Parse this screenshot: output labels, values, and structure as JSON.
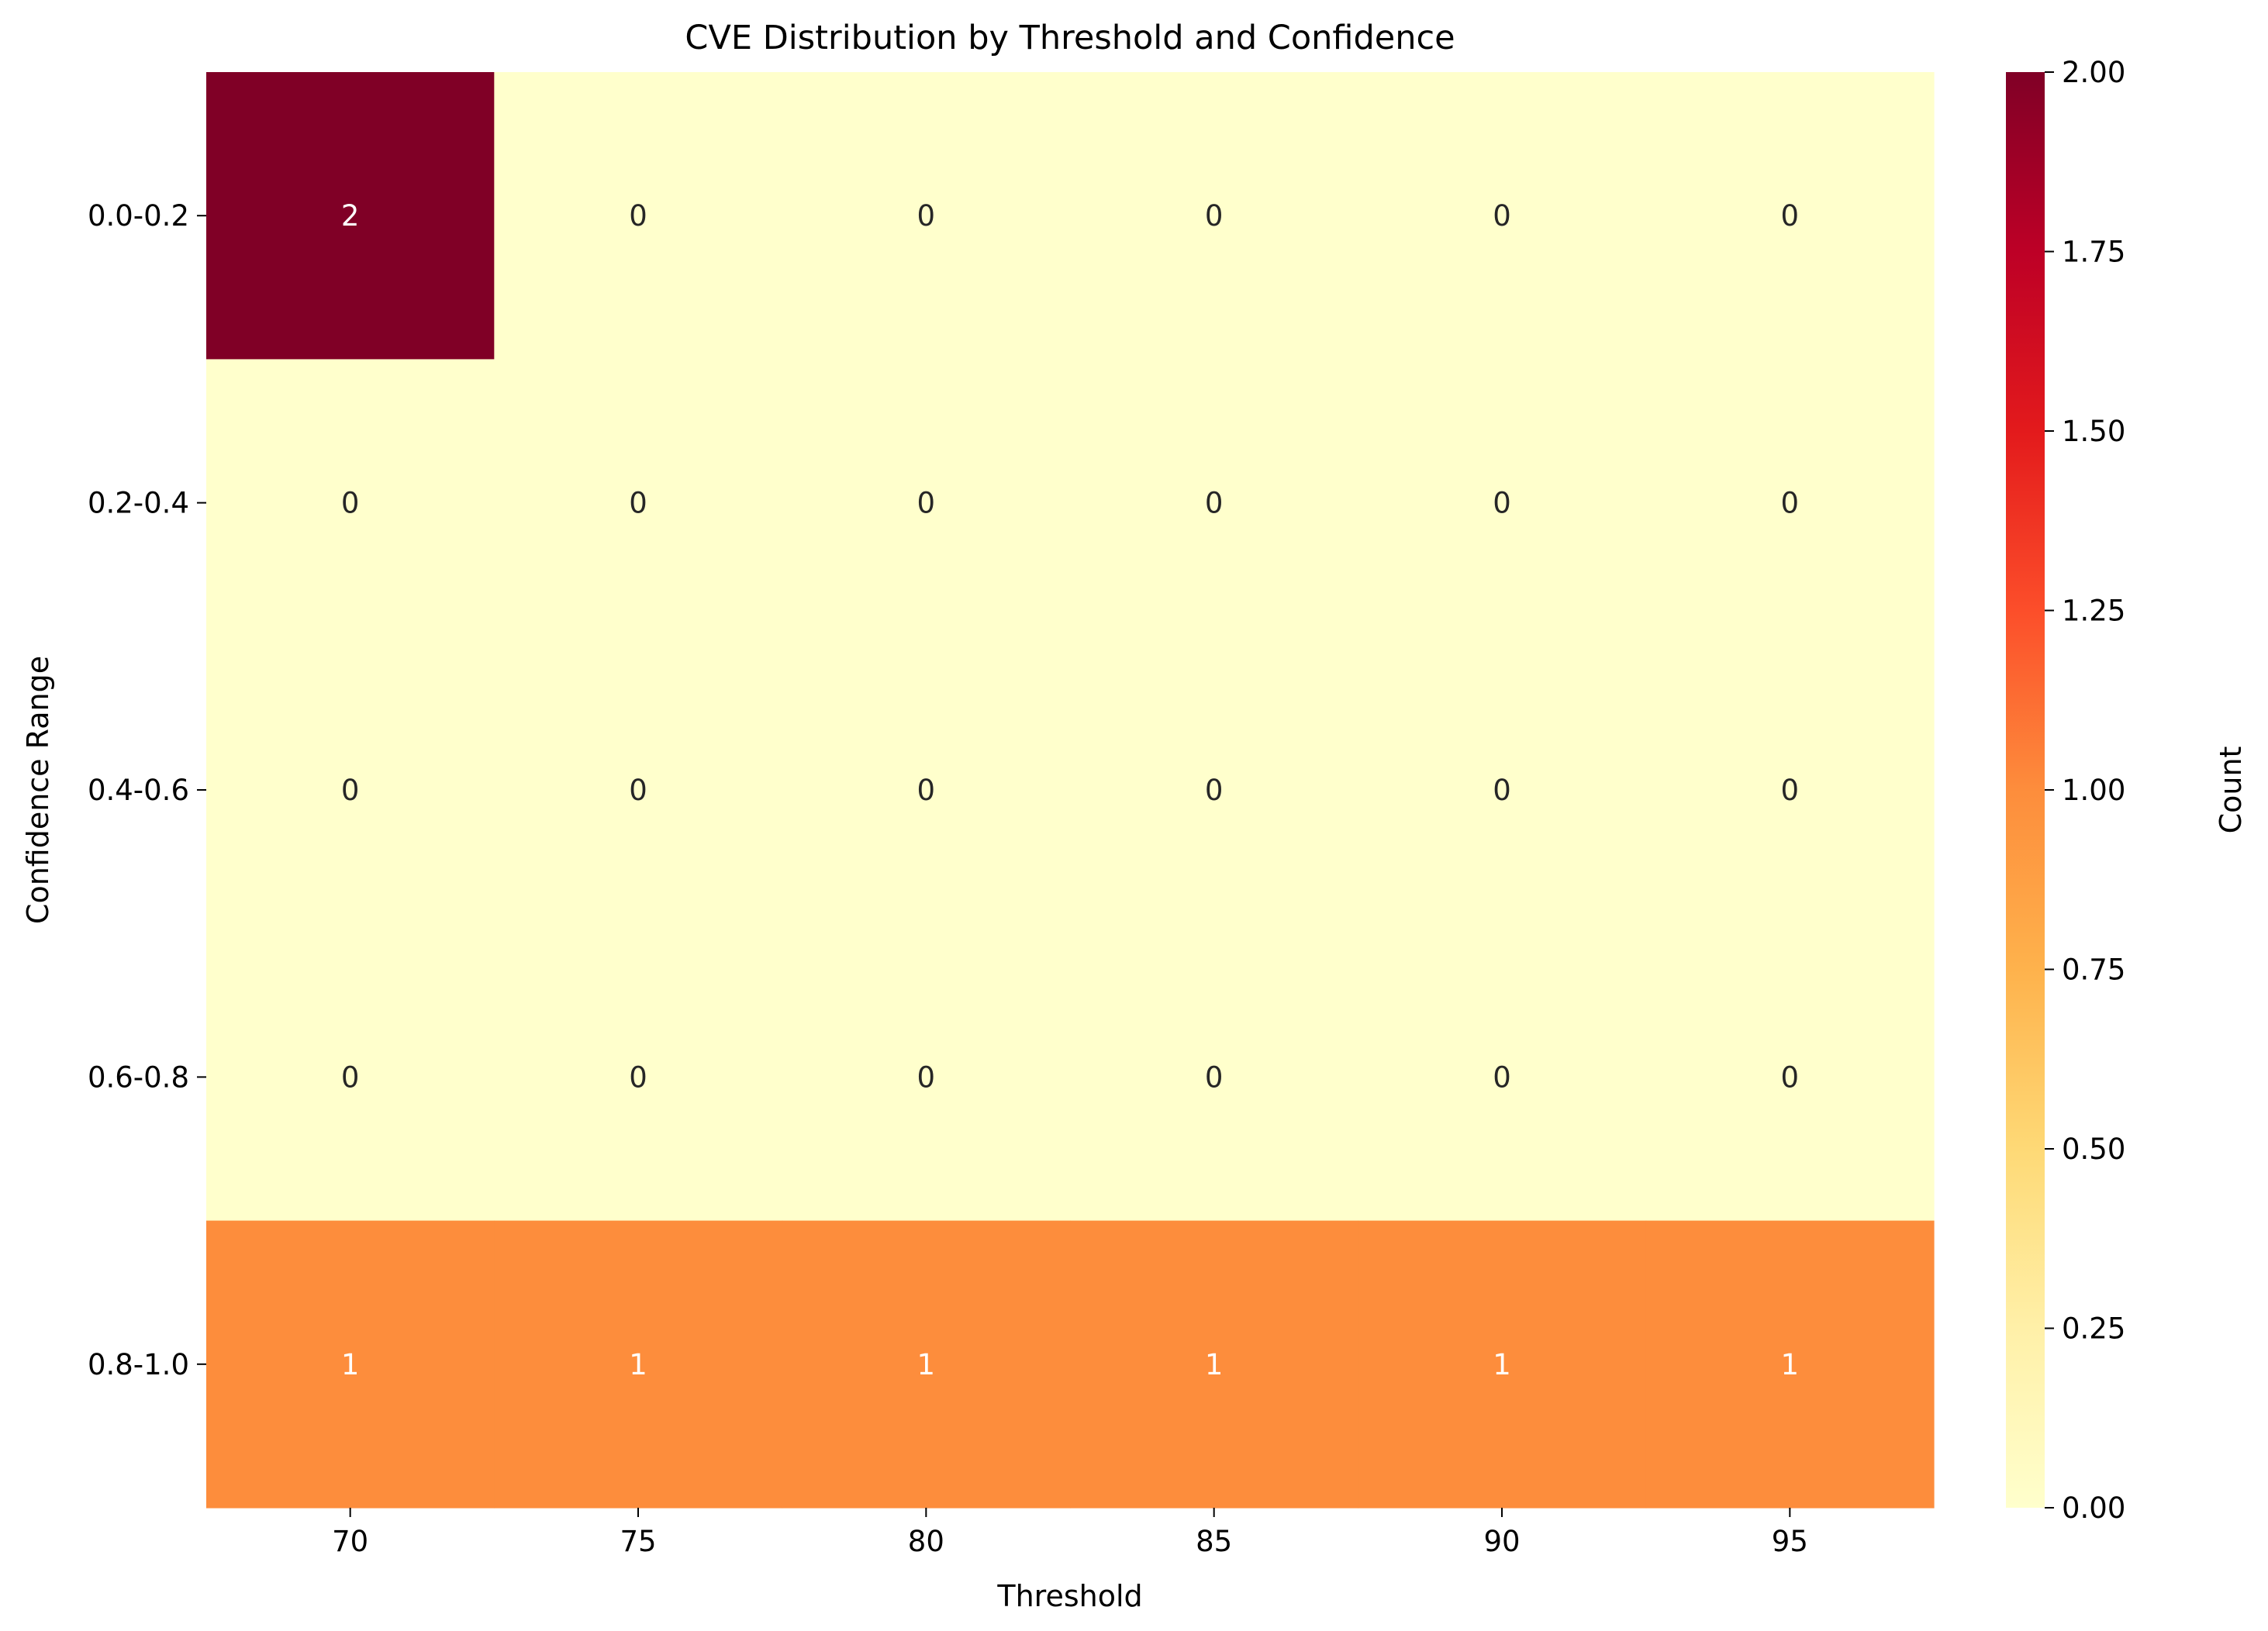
{
  "chart_data": {
    "type": "heatmap",
    "title": "CVE Distribution by Threshold and Confidence",
    "xlabel": "Threshold",
    "ylabel": "Confidence Range",
    "x_categories": [
      "70",
      "75",
      "80",
      "85",
      "90",
      "95"
    ],
    "y_categories": [
      "0.0-0.2",
      "0.2-0.4",
      "0.4-0.6",
      "0.6-0.8",
      "0.8-1.0"
    ],
    "values": [
      [
        2,
        0,
        0,
        0,
        0,
        0
      ],
      [
        0,
        0,
        0,
        0,
        0,
        0
      ],
      [
        0,
        0,
        0,
        0,
        0,
        0
      ],
      [
        0,
        0,
        0,
        0,
        0,
        0
      ],
      [
        1,
        1,
        1,
        1,
        1,
        1
      ]
    ],
    "annotations": true,
    "colormap": "YlOrRd",
    "colorbar": {
      "label": "Count",
      "range": [
        0.0,
        2.0
      ],
      "ticks": [
        "0.00",
        "0.25",
        "0.50",
        "0.75",
        "1.00",
        "1.25",
        "1.50",
        "1.75",
        "2.00"
      ]
    },
    "colors": {
      "min": "#ffffcc",
      "mid": "#fd8d3c",
      "max": "#800026"
    },
    "grid": false
  }
}
